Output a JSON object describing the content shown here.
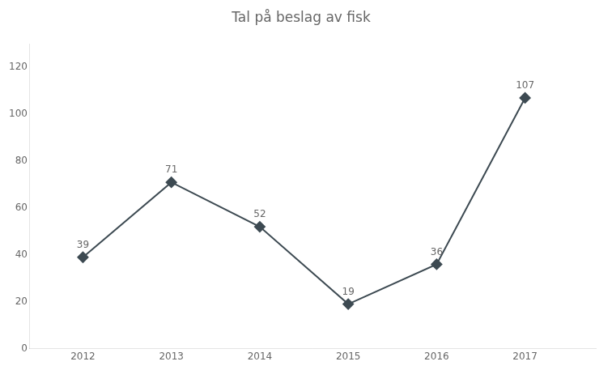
{
  "chart_data": {
    "type": "line",
    "title": "Tal på beslag av fisk",
    "x": [
      2012,
      2013,
      2014,
      2015,
      2016,
      2017
    ],
    "values": [
      39,
      71,
      52,
      19,
      36,
      107
    ],
    "color": "#3d4a52",
    "marker": "diamond",
    "xlim": [
      2011.4,
      2017.8
    ],
    "xticks": [
      2012,
      2013,
      2014,
      2015,
      2016,
      2017
    ],
    "ylim": [
      0,
      130
    ],
    "yticks": [
      0,
      20,
      40,
      60,
      80,
      100,
      120
    ],
    "grid": false,
    "data_labels": true
  }
}
